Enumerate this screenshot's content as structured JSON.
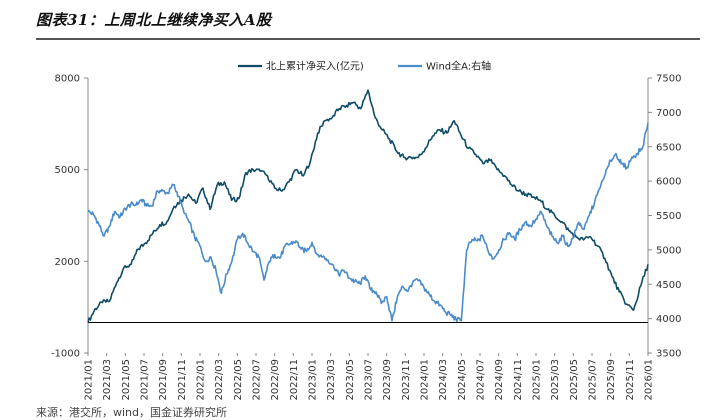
{
  "figure": {
    "title": "图表31：上周北上继续净买入A股",
    "source": "来源：港交所，wind，国金证券研究所"
  },
  "colors": {
    "northbound": "#0f4c66",
    "wind": "#4a8bc9",
    "zero_line": "#000000",
    "axis": "#888888"
  },
  "chart_data": {
    "type": "line",
    "title": "",
    "legend_position": "top-center",
    "grid": false,
    "x_tick_labels": [
      "2021/01",
      "2021/03",
      "2021/05",
      "2021/07",
      "2021/09",
      "2021/11",
      "2022/01",
      "2022/03",
      "2022/05",
      "2022/07",
      "2022/09",
      "2022/11",
      "2023/01",
      "2023/03",
      "2023/05",
      "2023/07",
      "2023/09",
      "2023/11",
      "2024/01",
      "2024/03",
      "2024/05",
      "2024/07",
      "2024/09",
      "2024/11",
      "2025/01",
      "2025/03",
      "2025/05",
      "2025/07",
      "2025/09",
      "2025/11",
      "2026/01"
    ],
    "left_axis": {
      "ylim": [
        -1000,
        8000
      ],
      "ticks": [
        -1000,
        2000,
        5000,
        8000
      ]
    },
    "right_axis": {
      "ylim": [
        3500,
        7500
      ],
      "ticks": [
        3500,
        4000,
        4500,
        5000,
        5500,
        6000,
        6500,
        7000,
        7500
      ]
    },
    "series": [
      {
        "name": "北上累计净买入(亿元)",
        "axis": "left",
        "points": [
          [
            0,
            0
          ],
          [
            1,
            450
          ],
          [
            2,
            650
          ],
          [
            3,
            700
          ],
          [
            4,
            1300
          ],
          [
            5,
            1800
          ],
          [
            6,
            1900
          ],
          [
            7,
            2400
          ],
          [
            8,
            2600
          ],
          [
            9,
            2900
          ],
          [
            10,
            3200
          ],
          [
            11,
            3300
          ],
          [
            12,
            3800
          ],
          [
            13,
            4000
          ],
          [
            14,
            4200
          ],
          [
            15,
            3900
          ],
          [
            16,
            4400
          ],
          [
            17,
            3700
          ],
          [
            18,
            4500
          ],
          [
            19,
            4600
          ],
          [
            20,
            4000
          ],
          [
            21,
            4050
          ],
          [
            22,
            4900
          ],
          [
            23,
            5000
          ],
          [
            24,
            4950
          ],
          [
            25,
            4800
          ],
          [
            26,
            4400
          ],
          [
            27,
            4300
          ],
          [
            28,
            4600
          ],
          [
            29,
            5000
          ],
          [
            30,
            4800
          ],
          [
            31,
            5300
          ],
          [
            32,
            6200
          ],
          [
            33,
            6600
          ],
          [
            34,
            6700
          ],
          [
            35,
            7000
          ],
          [
            36,
            7100
          ],
          [
            37,
            7200
          ],
          [
            38,
            7000
          ],
          [
            39,
            7600
          ],
          [
            40,
            6700
          ],
          [
            41,
            6300
          ],
          [
            42,
            6000
          ],
          [
            43,
            5600
          ],
          [
            44,
            5400
          ],
          [
            45,
            5400
          ],
          [
            46,
            5400
          ],
          [
            47,
            5700
          ],
          [
            48,
            6100
          ],
          [
            49,
            6300
          ],
          [
            50,
            6200
          ],
          [
            51,
            6600
          ],
          [
            52,
            6100
          ],
          [
            53,
            5700
          ],
          [
            54,
            5500
          ],
          [
            55,
            5200
          ],
          [
            56,
            5300
          ],
          [
            57,
            5000
          ],
          [
            58,
            4800
          ],
          [
            59,
            4500
          ],
          [
            60,
            4300
          ],
          [
            61,
            4200
          ],
          [
            62,
            4100
          ],
          [
            63,
            4000
          ],
          [
            64,
            3700
          ],
          [
            65,
            3500
          ],
          [
            66,
            3300
          ],
          [
            67,
            3000
          ],
          [
            68,
            2800
          ],
          [
            69,
            2700
          ],
          [
            70,
            2800
          ],
          [
            71,
            2500
          ],
          [
            72,
            2100
          ],
          [
            73,
            1500
          ],
          [
            74,
            1000
          ],
          [
            75,
            600
          ],
          [
            76,
            400
          ],
          [
            77,
            1200
          ],
          [
            78,
            1900
          ]
        ]
      },
      {
        "name": "Wind全A:右轴",
        "axis": "right",
        "points": [
          [
            0,
            5560
          ],
          [
            1,
            5520
          ],
          [
            2,
            5380
          ],
          [
            3,
            5200
          ],
          [
            4,
            5340
          ],
          [
            5,
            5560
          ],
          [
            6,
            5480
          ],
          [
            7,
            5600
          ],
          [
            8,
            5660
          ],
          [
            9,
            5650
          ],
          [
            10,
            5730
          ],
          [
            11,
            5640
          ],
          [
            12,
            5640
          ],
          [
            13,
            5860
          ],
          [
            14,
            5860
          ],
          [
            15,
            5820
          ],
          [
            16,
            5950
          ],
          [
            17,
            5780
          ],
          [
            18,
            5540
          ],
          [
            19,
            5400
          ],
          [
            20,
            5180
          ],
          [
            21,
            5060
          ],
          [
            22,
            4830
          ],
          [
            23,
            4900
          ],
          [
            24,
            4700
          ],
          [
            25,
            4370
          ],
          [
            26,
            4650
          ],
          [
            27,
            4840
          ],
          [
            28,
            5150
          ],
          [
            29,
            5240
          ],
          [
            30,
            5090
          ],
          [
            31,
            4980
          ],
          [
            32,
            4900
          ],
          [
            33,
            4560
          ],
          [
            34,
            4830
          ],
          [
            35,
            4930
          ],
          [
            36,
            4880
          ],
          [
            37,
            5060
          ],
          [
            38,
            5090
          ],
          [
            39,
            5130
          ],
          [
            40,
            5010
          ],
          [
            41,
            4980
          ],
          [
            42,
            5110
          ],
          [
            43,
            4930
          ],
          [
            44,
            4900
          ],
          [
            45,
            4850
          ],
          [
            46,
            4780
          ],
          [
            47,
            4640
          ],
          [
            48,
            4700
          ],
          [
            49,
            4590
          ],
          [
            50,
            4540
          ],
          [
            51,
            4510
          ],
          [
            52,
            4620
          ],
          [
            53,
            4420
          ],
          [
            54,
            4390
          ],
          [
            55,
            4220
          ],
          [
            56,
            4320
          ],
          [
            57,
            3970
          ],
          [
            58,
            4310
          ],
          [
            59,
            4470
          ],
          [
            60,
            4400
          ],
          [
            61,
            4550
          ],
          [
            62,
            4550
          ],
          [
            63,
            4450
          ],
          [
            64,
            4350
          ],
          [
            65,
            4250
          ],
          [
            66,
            4200
          ],
          [
            67,
            4100
          ],
          [
            68,
            4050
          ],
          [
            69,
            3990
          ],
          [
            70,
            3970
          ],
          [
            71,
            5000
          ],
          [
            72,
            5150
          ],
          [
            73,
            5130
          ],
          [
            74,
            5200
          ],
          [
            75,
            4990
          ],
          [
            76,
            4870
          ],
          [
            77,
            5000
          ],
          [
            78,
            5150
          ],
          [
            79,
            5250
          ],
          [
            80,
            5150
          ],
          [
            81,
            5300
          ],
          [
            82,
            5400
          ],
          [
            83,
            5350
          ],
          [
            84,
            5450
          ],
          [
            85,
            5550
          ],
          [
            86,
            5350
          ],
          [
            87,
            5200
          ],
          [
            88,
            5100
          ],
          [
            89,
            5200
          ],
          [
            90,
            5050
          ],
          [
            91,
            5180
          ],
          [
            92,
            5400
          ],
          [
            93,
            5300
          ],
          [
            94,
            5500
          ],
          [
            95,
            5700
          ],
          [
            96,
            5900
          ],
          [
            97,
            6100
          ],
          [
            98,
            6300
          ],
          [
            99,
            6400
          ],
          [
            100,
            6250
          ],
          [
            101,
            6200
          ],
          [
            102,
            6350
          ],
          [
            103,
            6400
          ],
          [
            104,
            6500
          ],
          [
            105,
            6850
          ]
        ]
      }
    ]
  }
}
